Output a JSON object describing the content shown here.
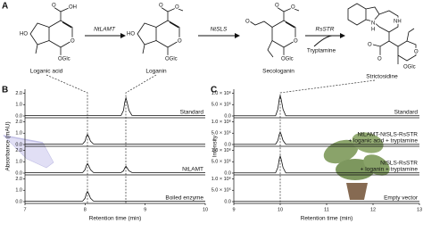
{
  "figure": {
    "panel_labels": [
      "A",
      "B",
      "C"
    ]
  },
  "pathway": {
    "compounds": [
      "Loganic acid",
      "Loganin",
      "Secologanin",
      "Strictosidine"
    ],
    "enzymes": [
      "NtLAMT",
      "NtSLS",
      "RsSTR"
    ],
    "cosubstrate": "Tryptamine",
    "atoms": {
      "loganic_acid": [
        "O",
        "OH",
        "HO",
        "O",
        "OGlc"
      ],
      "loganin": [
        "O",
        "O",
        "HO",
        "O",
        "OGlc"
      ],
      "secologanin": [
        "O",
        "O",
        "O",
        "O",
        "OGlc"
      ],
      "strictosidine": [
        "N",
        "H",
        "NH",
        "O",
        "O",
        "O",
        "OGlc"
      ]
    }
  },
  "chart_data": [
    {
      "type": "line",
      "xlabel": "Retention time (min)",
      "ylabel": "Absorbance (mAU)",
      "xlim": [
        7,
        10
      ],
      "xticks": [
        7,
        8,
        9,
        10
      ],
      "ylim": [
        0,
        2.2
      ],
      "yticks": [
        {
          "value": 0,
          "label": "0.0"
        },
        {
          "value": 1,
          "label": "1.0"
        },
        {
          "value": 2,
          "label": "2.0"
        }
      ],
      "series": [
        {
          "name": "Standard",
          "color": "#111111",
          "x": [
            7,
            8.6,
            8.64,
            8.66,
            8.68,
            8.7,
            8.73,
            8.78,
            10
          ],
          "values": [
            0.05,
            0.05,
            0.5,
            1.2,
            1.6,
            1.2,
            0.5,
            0.05,
            0.05
          ]
        },
        {
          "color": "#111111",
          "x": [
            7,
            7.96,
            8.0,
            8.02,
            8.04,
            8.06,
            8.09,
            8.14,
            10
          ],
          "values": [
            0.05,
            0.05,
            0.3,
            0.7,
            0.9,
            0.7,
            0.3,
            0.05,
            0.05
          ]
        },
        {
          "name": "NtLAMT",
          "color": "#111111",
          "x": [
            7,
            7.96,
            8.0,
            8.02,
            8.04,
            8.06,
            8.09,
            8.14,
            8.6,
            8.64,
            8.66,
            8.68,
            8.7,
            8.73,
            8.78,
            10
          ],
          "values": [
            0.05,
            0.05,
            0.3,
            0.65,
            0.85,
            0.65,
            0.3,
            0.05,
            0.05,
            0.2,
            0.45,
            0.6,
            0.45,
            0.2,
            0.05,
            0.05
          ]
        },
        {
          "name": "Boiled enzyme",
          "color": "#111111",
          "x": [
            7,
            7.96,
            8.0,
            8.02,
            8.04,
            8.06,
            8.09,
            8.14,
            10
          ],
          "values": [
            0.05,
            0.05,
            0.3,
            0.7,
            0.9,
            0.7,
            0.3,
            0.05,
            0.05
          ]
        }
      ]
    },
    {
      "type": "line",
      "xlabel": "Retention time (min)",
      "ylabel": "Intensity",
      "xlim": [
        9,
        13
      ],
      "xticks": [
        9,
        10,
        11,
        12,
        13
      ],
      "ylim": [
        0,
        1100000
      ],
      "yticks": [
        {
          "value": 0,
          "label": "0.0"
        },
        {
          "value": 500000,
          "label": "5.0 × 10⁵"
        },
        {
          "value": 1000000,
          "label": "1.0 × 10⁶"
        }
      ],
      "series": [
        {
          "name": "Standard",
          "color": "#111111",
          "x": [
            9,
            9.9,
            9.95,
            9.98,
            10,
            10.02,
            10.06,
            10.12,
            13
          ],
          "values": [
            10000,
            10000,
            300000,
            750000,
            900000,
            750000,
            300000,
            10000,
            10000
          ]
        },
        {
          "name": [
            "NtLAMT-NtSLS-RsSTR",
            "+ loganic acid + tryptamine"
          ],
          "color": "#111111",
          "x": [
            9,
            9.9,
            9.95,
            9.98,
            10,
            10.02,
            10.06,
            10.12,
            13
          ],
          "values": [
            10000,
            10000,
            180000,
            450000,
            550000,
            450000,
            180000,
            10000,
            10000
          ]
        },
        {
          "name": [
            "NtSLS-RsSTR",
            "+ loganin + tryptamine"
          ],
          "color": "#111111",
          "x": [
            9,
            9.9,
            9.95,
            9.98,
            10,
            10.02,
            10.06,
            10.12,
            13
          ],
          "values": [
            10000,
            10000,
            250000,
            620000,
            750000,
            620000,
            250000,
            10000,
            10000
          ]
        },
        {
          "name": "Empty vector",
          "color": "#111111",
          "x": [
            9,
            13
          ],
          "values": [
            10000,
            10000
          ]
        }
      ]
    }
  ]
}
